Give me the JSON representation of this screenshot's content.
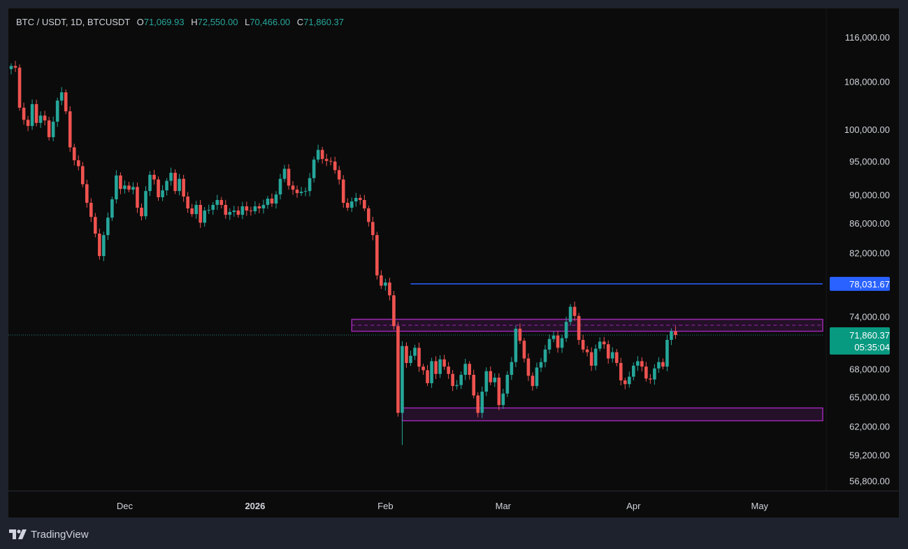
{
  "header": {
    "symbol": "BTC / USDT, 1D, BTCUSDT",
    "open_label": "O",
    "open": "71,069.93",
    "high_label": "H",
    "high": "72,550.00",
    "low_label": "L",
    "low": "70,466.00",
    "close_label": "C",
    "close": "71,860.37"
  },
  "footer": {
    "brand": "TradingView",
    "logo_icon": "tradingview-logo-icon"
  },
  "colors": {
    "up": "#26a69a",
    "down": "#ef5350",
    "zone": "#9c27b0",
    "resistance_line": "#2962ff",
    "price_label": "#089981",
    "axis_text": "#d1d4dc",
    "background": "#0b0b0b"
  },
  "chart_data": {
    "type": "candlestick",
    "symbol": "BTCUSDT",
    "interval": "1D",
    "x_start": "2025-11-04",
    "x_range": [
      "2025-11-04",
      "2026-05-16"
    ],
    "y_scale": "log",
    "ylim": [
      56000,
      119000
    ],
    "y_ticks": [
      {
        "value": 116000,
        "label": "116,000.00"
      },
      {
        "value": 108000,
        "label": "108,000.00"
      },
      {
        "value": 100000,
        "label": "100,000.00"
      },
      {
        "value": 95000,
        "label": "95,000.00"
      },
      {
        "value": 90000,
        "label": "90,000.00"
      },
      {
        "value": 86000,
        "label": "86,000.00"
      },
      {
        "value": 82000,
        "label": "82,000.00"
      },
      {
        "value": 74000,
        "label": "74,000.00"
      },
      {
        "value": 68000,
        "label": "68,000.00"
      },
      {
        "value": 65000,
        "label": "65,000.00"
      },
      {
        "value": 62000,
        "label": "62,000.00"
      },
      {
        "value": 59200,
        "label": "59,200.00"
      },
      {
        "value": 56800,
        "label": "56,800.00"
      }
    ],
    "x_ticks": [
      {
        "date": "2025-12-01",
        "label": "Dec",
        "bold": false
      },
      {
        "date": "2026-01-01",
        "label": "2026",
        "bold": true
      },
      {
        "date": "2026-02-01",
        "label": "Feb",
        "bold": false
      },
      {
        "date": "2026-03-01",
        "label": "Mar",
        "bold": false
      },
      {
        "date": "2026-04-01",
        "label": "Apr",
        "bold": false
      },
      {
        "date": "2026-05-01",
        "label": "May",
        "bold": false
      }
    ],
    "closes": [
      110800,
      110500,
      103600,
      101600,
      100600,
      104200,
      101100,
      102300,
      101500,
      98800,
      101300,
      104800,
      106200,
      103000,
      97200,
      95200,
      94300,
      91600,
      88900,
      86900,
      84600,
      81600,
      84400,
      86800,
      89400,
      92900,
      90900,
      91400,
      90800,
      91200,
      88200,
      87000,
      90600,
      93000,
      92300,
      89700,
      90700,
      92100,
      93300,
      90600,
      92400,
      89800,
      88100,
      87300,
      88600,
      86100,
      87800,
      87900,
      88600,
      89300,
      88600,
      87200,
      87600,
      87800,
      87200,
      88400,
      87800,
      87700,
      88400,
      88100,
      88600,
      89500,
      88800,
      90100,
      92400,
      93900,
      91400,
      90800,
      90300,
      90500,
      90600,
      92500,
      95300,
      96800,
      95400,
      95100,
      95000,
      93700,
      92300,
      88900,
      88200,
      89100,
      89600,
      89300,
      88100,
      86200,
      84400,
      79100,
      77800,
      78200,
      76600,
      72900,
      63400,
      70600,
      68700,
      69500,
      70400,
      68300,
      67900,
      66500,
      68900,
      67500,
      69100,
      68300,
      67500,
      66200,
      66300,
      67400,
      68600,
      67400,
      65200,
      63400,
      65600,
      67800,
      66600,
      67100,
      64200,
      65400,
      67400,
      68800,
      72600,
      71200,
      69200,
      67300,
      66200,
      68200,
      68800,
      70200,
      71400,
      71800,
      70400,
      71500,
      73400,
      75200,
      74100,
      71300,
      70200,
      69900,
      68400,
      70300,
      71100,
      70800,
      69200,
      69900,
      68700,
      66800,
      66400,
      67200,
      68400,
      68900,
      68300,
      67000,
      66900,
      68100,
      68800,
      68300,
      71300,
      72300,
      71860.37
    ],
    "levels": [
      {
        "kind": "horizontal_line",
        "start": "2026-02-07",
        "price": 78031.67,
        "label": "78,031.67"
      }
    ],
    "zones": [
      {
        "start": "2026-01-24",
        "top": 73700,
        "bottom": 72300,
        "midline": 73000
      },
      {
        "start": "2026-02-05",
        "top": 63900,
        "bottom": 62600
      }
    ],
    "last_price": {
      "price": 71860.37,
      "label": "71,860.37",
      "countdown": "05:35:04"
    }
  }
}
